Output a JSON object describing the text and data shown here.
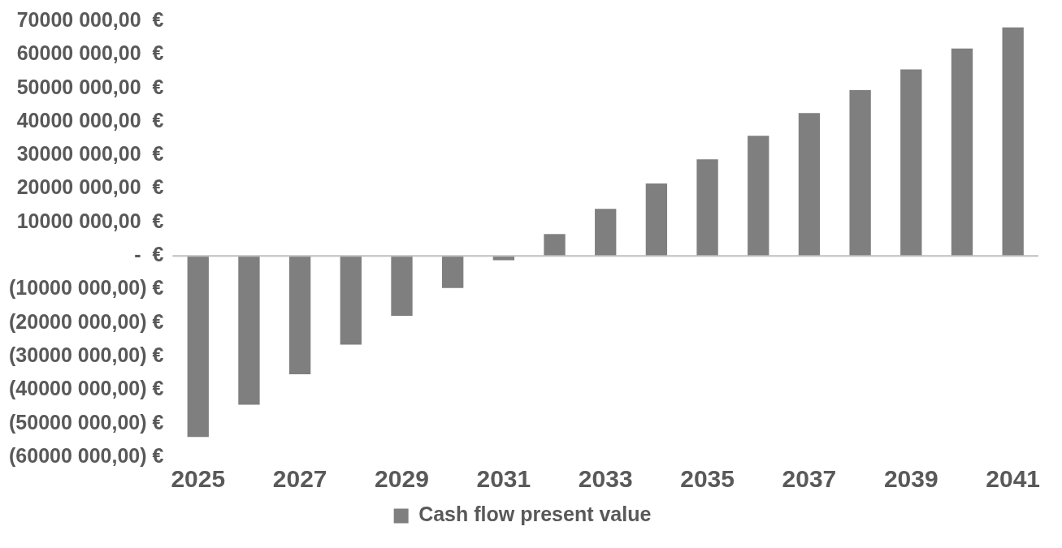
{
  "chart_data": {
    "type": "bar",
    "categories": [
      "2025",
      null,
      "2027",
      null,
      "2029",
      null,
      "2031",
      null,
      "2033",
      null,
      "2035",
      null,
      "2037",
      null,
      "2039",
      null,
      "2041"
    ],
    "series": [
      {
        "name": "Cash flow present value",
        "color": "#7f7f7f",
        "values": [
          -54000000,
          -44400000,
          -35300000,
          -26500000,
          -17900000,
          -9600000,
          -1300000,
          6500000,
          14000000,
          21600000,
          28800000,
          35800000,
          42600000,
          49400000,
          55600000,
          61800000,
          68100000
        ]
      }
    ],
    "ylim": [
      -60000000,
      70000000
    ],
    "yticks": [
      {
        "value": -60000000,
        "label": "(60000 000,00) €"
      },
      {
        "value": -50000000,
        "label": "(50000 000,00) €"
      },
      {
        "value": -40000000,
        "label": "(40000 000,00) €"
      },
      {
        "value": -30000000,
        "label": "(30000 000,00) €"
      },
      {
        "value": -20000000,
        "label": "(20000 000,00) €"
      },
      {
        "value": -10000000,
        "label": "(10000 000,00) €"
      },
      {
        "value": 0,
        "label": "-  €"
      },
      {
        "value": 10000000,
        "label": "10000 000,00  €"
      },
      {
        "value": 20000000,
        "label": "20000 000,00  €"
      },
      {
        "value": 30000000,
        "label": "30000 000,00  €"
      },
      {
        "value": 40000000,
        "label": "40000 000,00  €"
      },
      {
        "value": 50000000,
        "label": "50000 000,00  €"
      },
      {
        "value": 60000000,
        "label": "60000 000,00  €"
      },
      {
        "value": 70000000,
        "label": "70000 000,00  €"
      }
    ],
    "ref_lines": [
      {
        "axis": "y",
        "value": 0,
        "color": "#bfbfbf"
      }
    ],
    "grid": false,
    "legend": "bottom"
  }
}
